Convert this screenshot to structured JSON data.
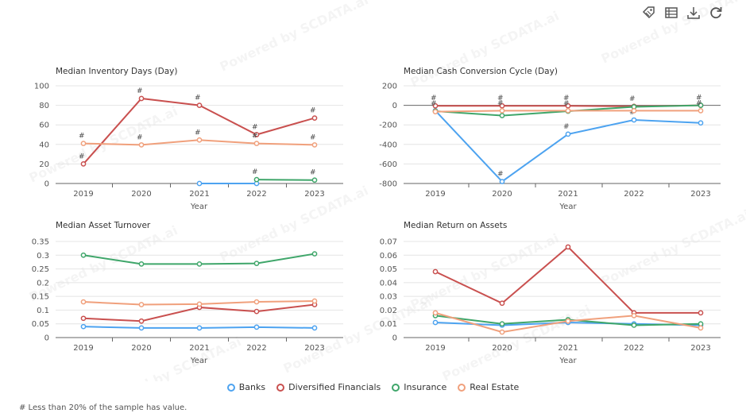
{
  "watermark": "Powered by SCDATA.ai",
  "toolbar": [
    {
      "icon": "tag-icon"
    },
    {
      "icon": "table-view-icon"
    },
    {
      "icon": "download-icon"
    },
    {
      "icon": "refresh-icon"
    }
  ],
  "legend": [
    {
      "name": "Banks",
      "color": "#4da3f0"
    },
    {
      "name": "Diversified Financials",
      "color": "#c9504f"
    },
    {
      "name": "Insurance",
      "color": "#3fa66a"
    },
    {
      "name": "Real Estate",
      "color": "#f0a07c"
    }
  ],
  "footnote": "# Less than 20% of the sample has value.",
  "chart_data": [
    {
      "type": "line",
      "title": "Median Inventory Days (Day)",
      "xlabel": "Year",
      "categories": [
        "2019",
        "2020",
        "2021",
        "2022",
        "2023"
      ],
      "yticks": [
        0,
        20,
        40,
        60,
        80,
        100
      ],
      "ytick_labels": [
        "0",
        "20",
        "40",
        "60",
        "80",
        "100"
      ],
      "ylim": [
        0,
        100
      ],
      "series": [
        {
          "name": "Banks",
          "values": [
            null,
            null,
            0,
            0,
            null
          ],
          "flags": [
            false,
            false,
            false,
            false,
            false
          ]
        },
        {
          "name": "Diversified Financials",
          "values": [
            20,
            87,
            80,
            50,
            67
          ],
          "flags": [
            true,
            true,
            true,
            true,
            true
          ]
        },
        {
          "name": "Insurance",
          "values": [
            null,
            null,
            null,
            4,
            3.5
          ],
          "flags": [
            false,
            false,
            true,
            true,
            true
          ]
        },
        {
          "name": "Real Estate",
          "values": [
            41,
            39.5,
            44.5,
            41,
            39.5
          ],
          "flags": [
            true,
            true,
            true,
            true,
            true
          ]
        }
      ]
    },
    {
      "type": "line",
      "title": "Median Cash Conversion Cycle (Day)",
      "xlabel": "Year",
      "categories": [
        "2019",
        "2020",
        "2021",
        "2022",
        "2023"
      ],
      "yticks": [
        -800,
        -600,
        -400,
        -200,
        0,
        200
      ],
      "ytick_labels": [
        "-800",
        "-600",
        "-400",
        "-200",
        "0",
        "200"
      ],
      "ylim": [
        -800,
        200
      ],
      "series": [
        {
          "name": "Banks",
          "values": [
            -55,
            -780,
            -295,
            -150,
            -180
          ],
          "flags": [
            false,
            true,
            true,
            true,
            false
          ]
        },
        {
          "name": "Diversified Financials",
          "values": [
            -5,
            -5,
            -5,
            -10,
            0
          ],
          "flags": [
            true,
            true,
            true,
            true,
            true
          ]
        },
        {
          "name": "Insurance",
          "values": [
            -60,
            -105,
            -60,
            -15,
            0
          ],
          "flags": [
            true,
            false,
            true,
            false,
            false
          ]
        },
        {
          "name": "Real Estate",
          "values": [
            -65,
            -55,
            -55,
            -55,
            -55
          ],
          "flags": [
            false,
            true,
            false,
            false,
            true
          ]
        }
      ]
    },
    {
      "type": "line",
      "title": "Median Asset Turnover",
      "xlabel": "Year",
      "categories": [
        "2019",
        "2020",
        "2021",
        "2022",
        "2023"
      ],
      "yticks": [
        0,
        0.05,
        0.1,
        0.15,
        0.2,
        0.25,
        0.3,
        0.35
      ],
      "ytick_labels": [
        "0",
        "0.05",
        "0.1",
        "0.15",
        "0.2",
        "0.25",
        "0.3",
        "0.35"
      ],
      "ylim": [
        0,
        0.35
      ],
      "series": [
        {
          "name": "Banks",
          "values": [
            0.04,
            0.035,
            0.035,
            0.038,
            0.035
          ],
          "flags": [
            false,
            false,
            false,
            false,
            false
          ]
        },
        {
          "name": "Diversified Financials",
          "values": [
            0.07,
            0.06,
            0.11,
            0.095,
            0.12
          ],
          "flags": [
            false,
            false,
            false,
            false,
            false
          ]
        },
        {
          "name": "Insurance",
          "values": [
            0.3,
            0.268,
            0.268,
            0.27,
            0.305
          ],
          "flags": [
            false,
            false,
            false,
            false,
            false
          ]
        },
        {
          "name": "Real Estate",
          "values": [
            0.13,
            0.12,
            0.122,
            0.13,
            0.133
          ],
          "flags": [
            false,
            false,
            false,
            false,
            false
          ]
        }
      ]
    },
    {
      "type": "line",
      "title": "Median Return on Assets",
      "xlabel": "Year",
      "categories": [
        "2019",
        "2020",
        "2021",
        "2022",
        "2023"
      ],
      "yticks": [
        0,
        0.01,
        0.02,
        0.03,
        0.04,
        0.05,
        0.06,
        0.07
      ],
      "ytick_labels": [
        "0",
        "0.01",
        "0.02",
        "0.03",
        "0.04",
        "0.05",
        "0.06",
        "0.07"
      ],
      "ylim": [
        0,
        0.07
      ],
      "series": [
        {
          "name": "Banks",
          "values": [
            0.011,
            0.009,
            0.011,
            0.01,
            0.009
          ],
          "flags": [
            false,
            false,
            false,
            false,
            false
          ]
        },
        {
          "name": "Diversified Financials",
          "values": [
            0.048,
            0.025,
            0.066,
            0.018,
            0.018
          ],
          "flags": [
            false,
            false,
            false,
            false,
            false
          ]
        },
        {
          "name": "Insurance",
          "values": [
            0.016,
            0.01,
            0.013,
            0.009,
            0.01
          ],
          "flags": [
            false,
            false,
            false,
            false,
            false
          ]
        },
        {
          "name": "Real Estate",
          "values": [
            0.018,
            0.004,
            0.012,
            0.016,
            0.007
          ],
          "flags": [
            false,
            false,
            false,
            false,
            false
          ]
        }
      ]
    }
  ]
}
